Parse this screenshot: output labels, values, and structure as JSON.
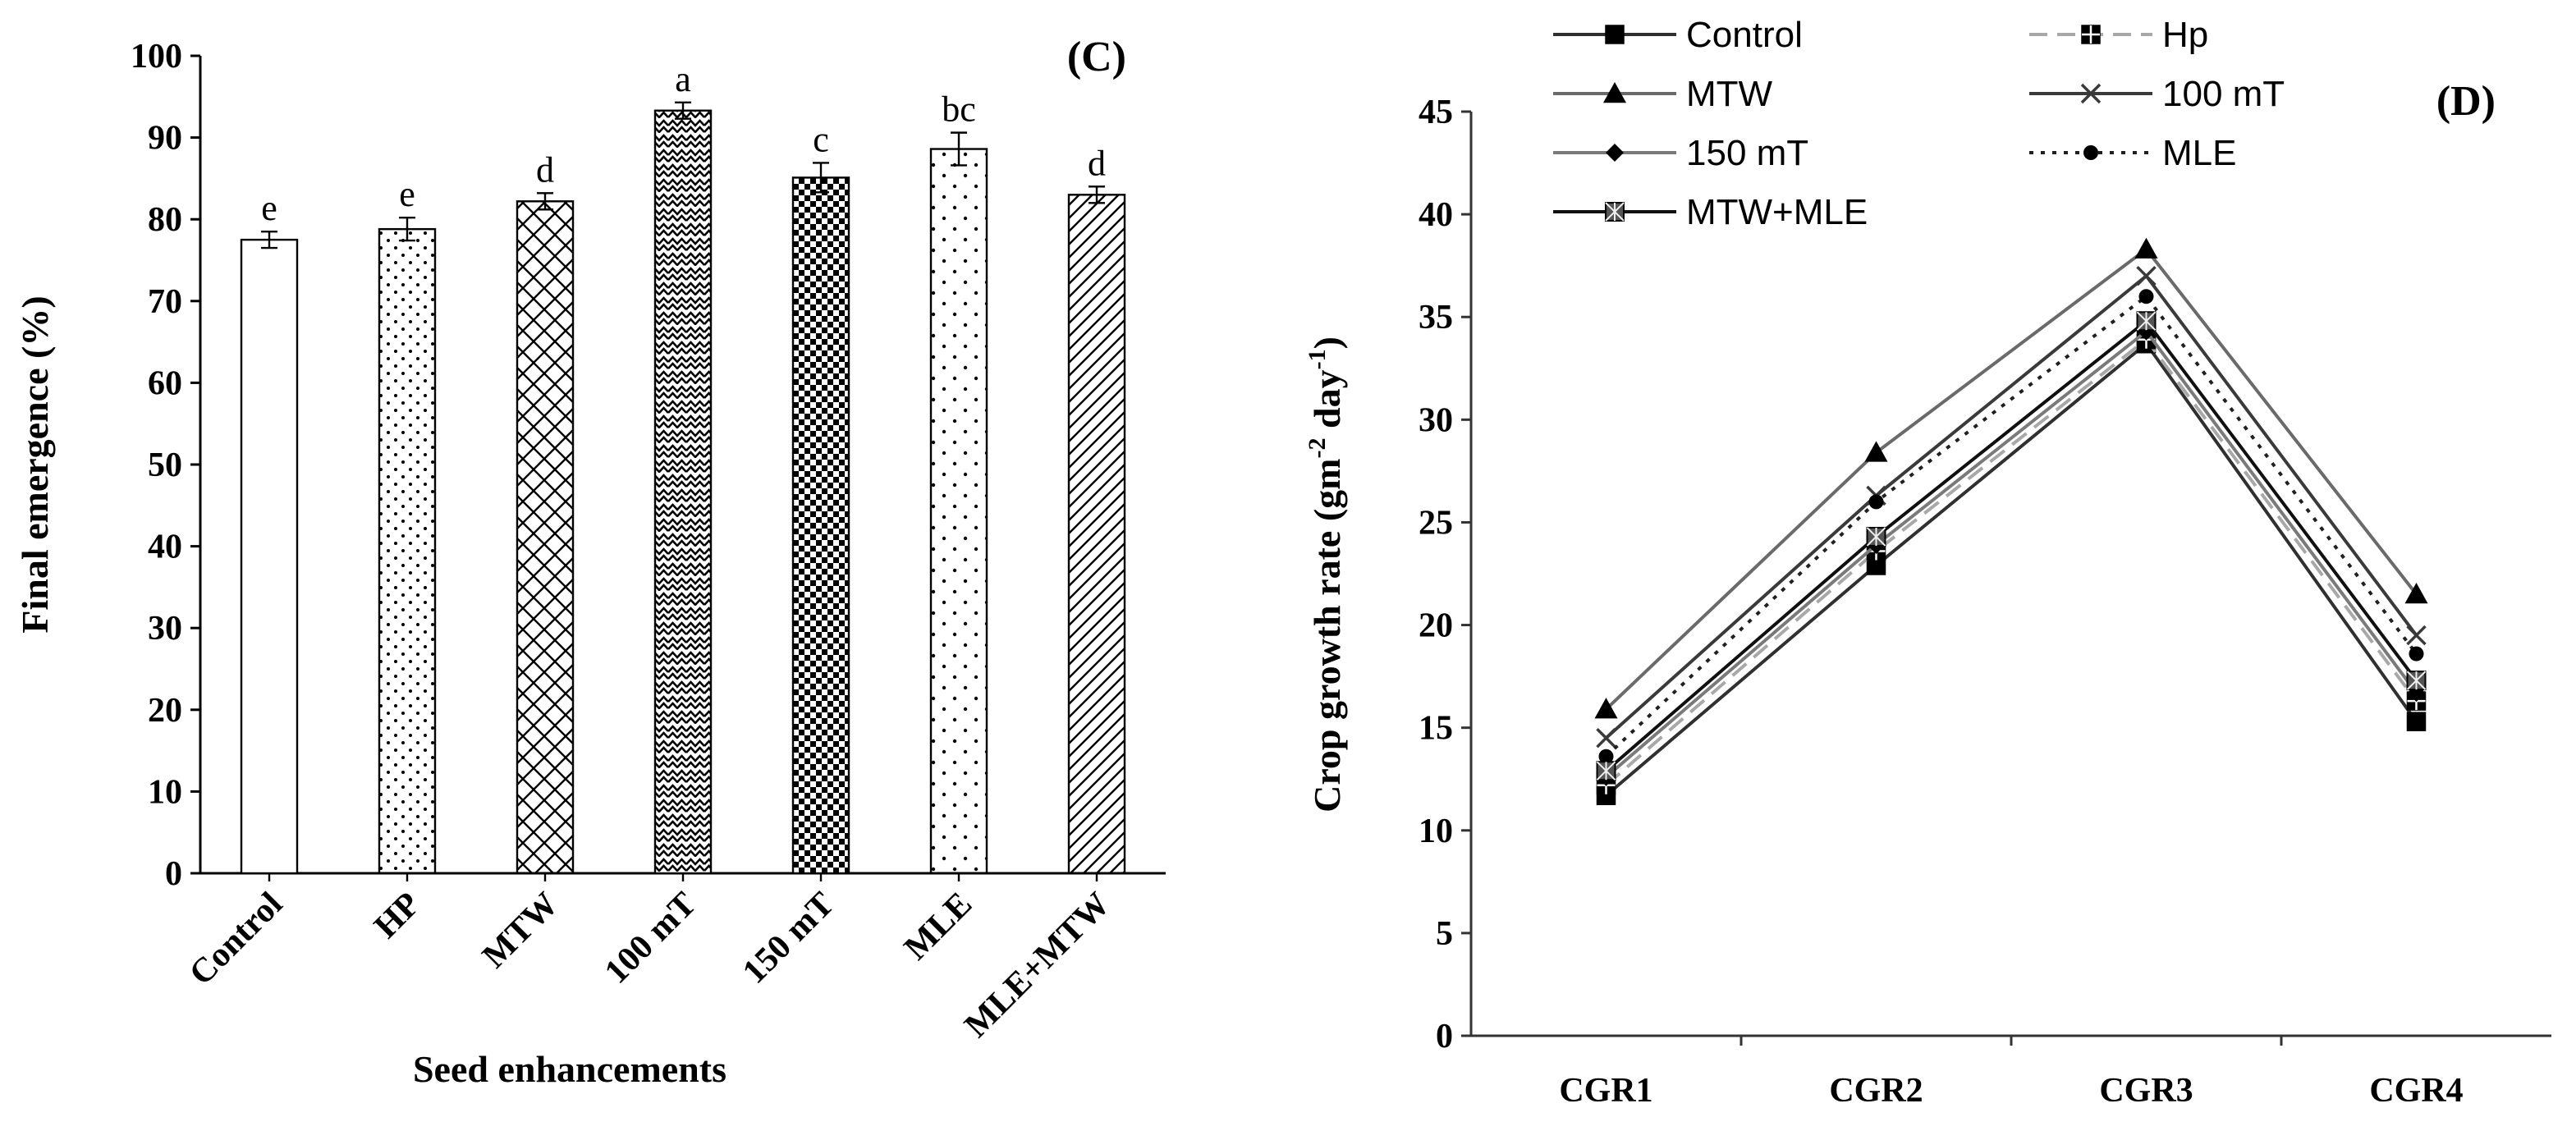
{
  "chart_data": [
    {
      "type": "bar",
      "panel_label": "(C)",
      "ylabel": "Final emergence (%)",
      "xlabel": "Seed enhancements",
      "ylim": [
        0,
        100
      ],
      "yticks": [
        0,
        10,
        20,
        30,
        40,
        50,
        60,
        70,
        80,
        90,
        100
      ],
      "categories": [
        "Control",
        "HP",
        "MTW",
        "100 mT",
        "150 mT",
        "MLE",
        "MLE+MTW"
      ],
      "values": [
        77.5,
        78.8,
        82.2,
        93.3,
        85.1,
        88.6,
        83.0
      ],
      "errors": [
        1.0,
        1.4,
        1.0,
        1.0,
        1.8,
        2.0,
        1.0
      ],
      "letters": [
        "e",
        "e",
        "d",
        "a",
        "c",
        "bc",
        "d"
      ],
      "bar_patterns": [
        "none",
        "dots",
        "crosshatch",
        "zigzag",
        "checker",
        "sparse-dots",
        "diagonal"
      ]
    },
    {
      "type": "line",
      "panel_label": "(D)",
      "ylabel": "Crop growth rate (gm",
      "ylabel_sup1": "-2",
      "ylabel_mid": " day",
      "ylabel_sup2": "-1",
      "ylabel_end": ")",
      "ylim": [
        0,
        45
      ],
      "yticks": [
        0,
        5,
        10,
        15,
        20,
        25,
        30,
        35,
        40,
        45
      ],
      "categories": [
        "CGR1",
        "CGR2",
        "CGR3",
        "CGR4"
      ],
      "legend_position": "top",
      "series": [
        {
          "name": "Control",
          "values": [
            11.7,
            22.9,
            33.7,
            15.3
          ],
          "marker": "square",
          "dash": "solid",
          "color": "#303030"
        },
        {
          "name": "Hp",
          "values": [
            12.2,
            23.6,
            33.9,
            16.3
          ],
          "marker": "square-plus",
          "dash": "dashed",
          "color": "#a8a8a8"
        },
        {
          "name": "MTW",
          "values": [
            15.9,
            28.4,
            38.3,
            21.5
          ],
          "marker": "triangle",
          "dash": "solid",
          "color": "#6a6a6a"
        },
        {
          "name": "100 mT",
          "values": [
            14.5,
            26.3,
            37.0,
            19.5
          ],
          "marker": "x",
          "dash": "solid",
          "color": "#3a3a3a"
        },
        {
          "name": "150 mT",
          "values": [
            12.6,
            23.9,
            34.3,
            16.7
          ],
          "marker": "diamond",
          "dash": "solid",
          "color": "#7a7a7a"
        },
        {
          "name": "MLE",
          "values": [
            13.6,
            26.0,
            36.0,
            18.6
          ],
          "marker": "circle",
          "dash": "dotted",
          "color": "#202020"
        },
        {
          "name": "MTW+MLE",
          "values": [
            12.9,
            24.3,
            34.8,
            17.3
          ],
          "marker": "square-star",
          "dash": "solid",
          "color": "#101010"
        }
      ]
    }
  ]
}
